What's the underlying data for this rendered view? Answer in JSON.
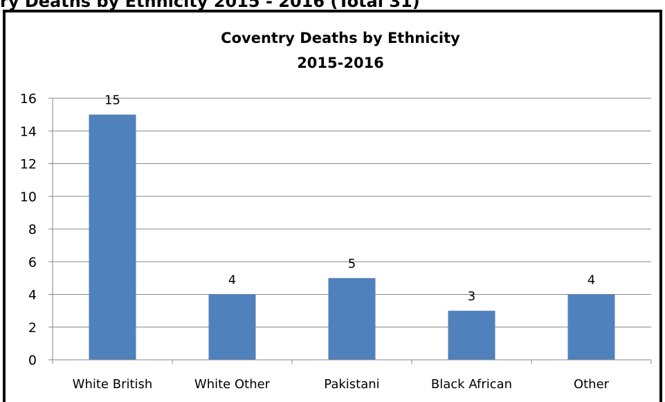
{
  "page": {
    "heading": "ry Deaths by Ethnicity 2015 - 2016 (Total 31)"
  },
  "chart_data": {
    "type": "bar",
    "title_line1": "Coventry Deaths by Ethnicity",
    "title_line2": "2015-2016",
    "categories": [
      "White British",
      "White Other",
      "Pakistani",
      "Black African",
      "Other"
    ],
    "values": [
      15,
      4,
      5,
      3,
      4
    ],
    "data_labels": [
      "15",
      "4",
      "5",
      "3",
      "4"
    ],
    "ylim": [
      0,
      16
    ],
    "yticks": [
      0,
      2,
      4,
      6,
      8,
      10,
      12,
      14,
      16
    ],
    "xlabel": "",
    "ylabel": "",
    "grid": true,
    "legend": "none",
    "bar_color": "#4f81bd",
    "grid_color": "#868686"
  }
}
